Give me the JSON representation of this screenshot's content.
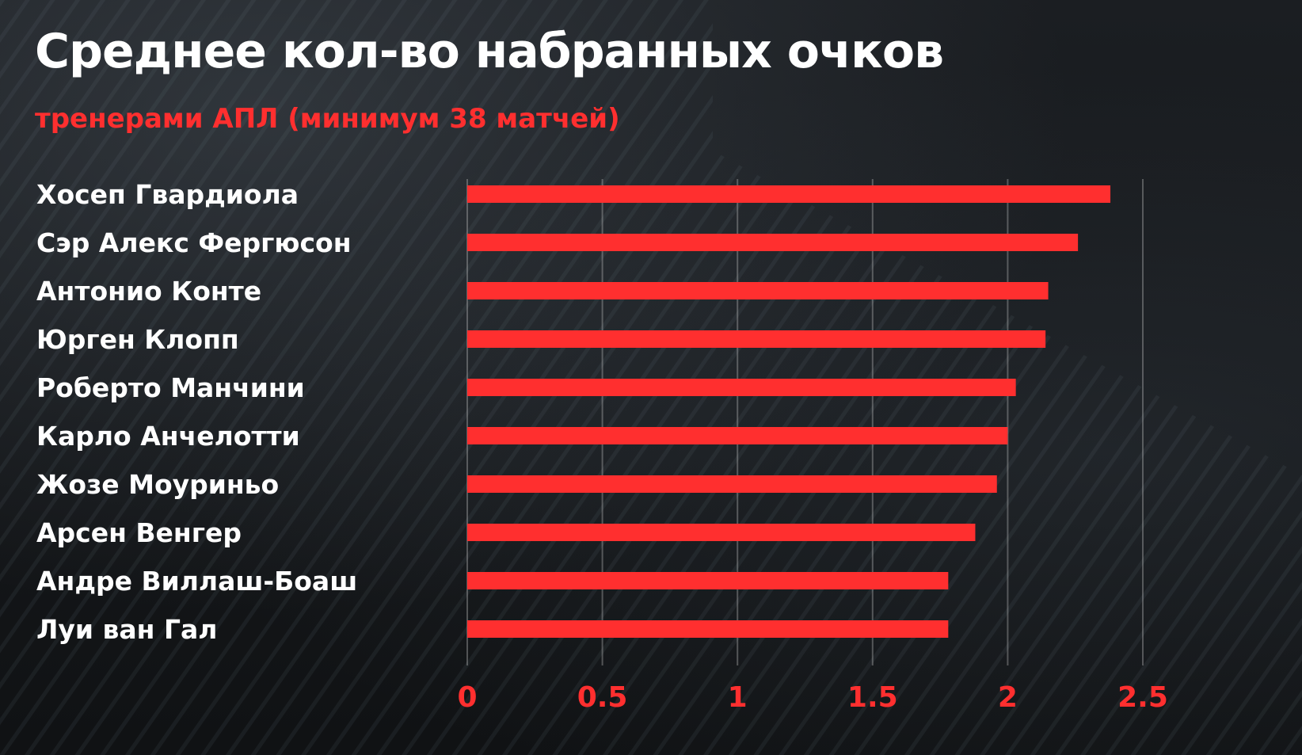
{
  "chart_data": {
    "type": "bar",
    "orientation": "horizontal",
    "title": "Среднее кол-во набранных очков",
    "subtitle": "тренерами АПЛ (минимум 38 матчей)",
    "categories": [
      "Хосеп Гвардиола",
      "Сэр Алекс Фергюсон",
      "Антонио Конте",
      "Юрген Клопп",
      "Роберто Манчини",
      "Карло Анчелотти",
      "Жозе Моуриньо",
      "Арсен Венгер",
      "Андре Виллаш-Боаш",
      "Луи ван Гал"
    ],
    "values": [
      2.38,
      2.26,
      2.15,
      2.14,
      2.03,
      2.0,
      1.96,
      1.88,
      1.78,
      1.78
    ],
    "xticks": [
      "0",
      "0.5",
      "1",
      "1.5",
      "2",
      "2.5"
    ],
    "xlim": [
      0,
      2.5
    ],
    "xlabel": "",
    "ylabel": "",
    "grid": true,
    "bar_color": "#ff2f2f",
    "label_color": "#ffffff",
    "tick_color": "#ff2f2f"
  }
}
